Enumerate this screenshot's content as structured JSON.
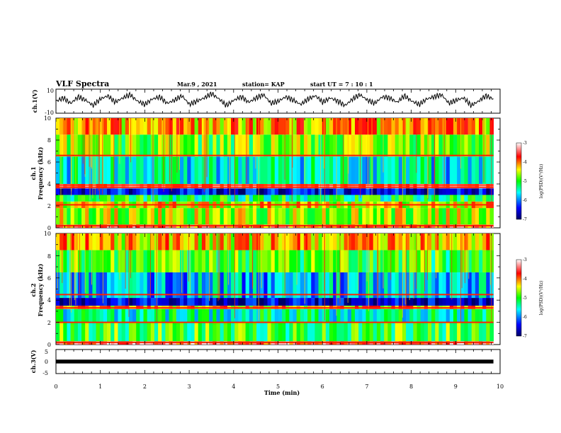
{
  "header": {
    "title": "VLF Spectra",
    "date": "Mar.9 , 2021",
    "station": "station= KAP",
    "start": "start UT = 7 : 10 : 1"
  },
  "chart_data": [
    {
      "type": "line",
      "panel": "ch1-waveform",
      "ylabel": "ch.1(V)",
      "ylim": [
        -10,
        10
      ],
      "yticks": [
        10,
        -10
      ],
      "xlim": [
        0,
        10
      ],
      "series": [
        {
          "values": [
            0,
            3,
            -2,
            4,
            1,
            -4,
            2,
            5,
            -1,
            3,
            6,
            0,
            -3,
            2,
            4,
            -2,
            1,
            5,
            -3,
            0,
            3,
            7,
            2,
            -4,
            1,
            4,
            -1,
            3,
            6,
            -2,
            0,
            4,
            1,
            -3,
            2,
            5,
            -1,
            3,
            0,
            -4,
            2,
            6,
            1,
            -2,
            4,
            3,
            -1,
            5,
            0,
            -3,
            2,
            4,
            6,
            -2,
            1,
            3,
            -4,
            0,
            5,
            2
          ]
        }
      ]
    },
    {
      "type": "heatmap",
      "panel": "ch1-spectrogram",
      "ylabel": "ch.1\nFrequency (kHz)",
      "ylim": [
        0,
        10
      ],
      "yticks": [
        "0",
        "2",
        "4",
        "6",
        "8",
        "10"
      ],
      "xlim": [
        0,
        9.85
      ],
      "colorbar": {
        "label": "log(PSD)(V²/Hz)",
        "range": [
          -7,
          -3
        ],
        "ticks": [
          "-3",
          "-4",
          "-5",
          "-6",
          "-7"
        ]
      },
      "bands": [
        {
          "f": [
            0.0,
            0.3
          ],
          "level": -3.8
        },
        {
          "f": [
            0.3,
            1.8
          ],
          "level": -4.6
        },
        {
          "f": [
            1.8,
            2.4
          ],
          "level": -4.4
        },
        {
          "f": [
            2.4,
            3.0
          ],
          "level": -5.2
        },
        {
          "f": [
            3.0,
            3.6
          ],
          "level": -6.5
        },
        {
          "f": [
            3.6,
            4.0
          ],
          "level": -3.5
        },
        {
          "f": [
            4.0,
            6.5
          ],
          "level": -5.6
        },
        {
          "f": [
            6.5,
            8.5
          ],
          "level": -4.8
        },
        {
          "f": [
            8.5,
            10.0
          ],
          "level": -4.2
        }
      ],
      "lines": [
        0.2,
        2.1,
        3.7,
        3.9,
        6.6
      ]
    },
    {
      "type": "heatmap",
      "panel": "ch2-spectrogram",
      "ylabel": "ch.2\nFrequency (kHz)",
      "ylim": [
        0,
        10
      ],
      "yticks": [
        "0",
        "2",
        "4",
        "6",
        "8",
        "10"
      ],
      "xlim": [
        0,
        9.85
      ],
      "colorbar": {
        "label": "log(PSD)(V²/Hz)",
        "range": [
          -7,
          -3
        ],
        "ticks": [
          "-3",
          "-4",
          "-5",
          "-6",
          "-7"
        ]
      },
      "bands": [
        {
          "f": [
            0.0,
            0.3
          ],
          "level": -3.6
        },
        {
          "f": [
            0.3,
            2.0
          ],
          "level": -5.0
        },
        {
          "f": [
            2.0,
            3.2
          ],
          "level": -5.4
        },
        {
          "f": [
            3.2,
            3.5
          ],
          "level": -4.2
        },
        {
          "f": [
            3.5,
            4.2
          ],
          "level": -6.6
        },
        {
          "f": [
            4.2,
            6.5
          ],
          "level": -5.8
        },
        {
          "f": [
            6.5,
            8.5
          ],
          "level": -5.0
        },
        {
          "f": [
            8.5,
            10.0
          ],
          "level": -4.3
        }
      ],
      "lines": [
        0.2,
        2.0,
        3.3,
        4.5
      ]
    },
    {
      "type": "line",
      "panel": "ch3-waveform",
      "ylabel": "ch.3(V)",
      "ylim": [
        -5,
        5
      ],
      "yticks": [
        "5",
        "0",
        "-5"
      ],
      "xlim": [
        0,
        10
      ],
      "band": [
        -0.8,
        0.8
      ]
    }
  ],
  "xaxis": {
    "label": "Time (min)",
    "ticks": [
      "0",
      "1",
      "2",
      "3",
      "4",
      "5",
      "6",
      "7",
      "8",
      "9",
      "10"
    ]
  }
}
